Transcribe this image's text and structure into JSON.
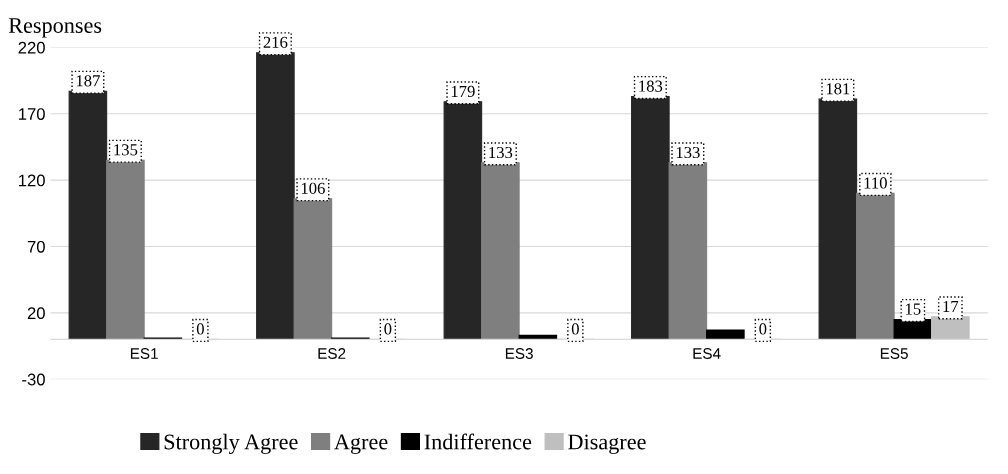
{
  "chart_data": {
    "type": "bar",
    "ylabel": "Responses",
    "categories": [
      "ES1",
      "ES2",
      "ES3",
      "ES4",
      "ES5"
    ],
    "series": [
      {
        "name": "Strongly Agree",
        "color": "#262626",
        "values": [
          187,
          216,
          179,
          183,
          181
        ],
        "value_labels": [
          "187",
          "216",
          "179",
          "183",
          "181"
        ]
      },
      {
        "name": "Agree",
        "color": "#7f7f7f",
        "values": [
          135,
          106,
          133,
          133,
          110
        ],
        "value_labels": [
          "135",
          "106",
          "133",
          "133",
          "110"
        ]
      },
      {
        "name": "Indifference",
        "color": "#000000",
        "values": [
          1,
          1,
          3,
          7,
          15
        ],
        "value_labels": [
          null,
          null,
          null,
          null,
          "15"
        ]
      },
      {
        "name": "Disagree",
        "color": "#bfbfbf",
        "values": [
          0,
          0,
          0,
          0,
          17
        ],
        "value_labels": [
          "0",
          "0",
          "0",
          "0",
          "17"
        ]
      }
    ],
    "ylim": [
      -30,
      220
    ],
    "yticks": [
      -30,
      20,
      70,
      120,
      170,
      220
    ],
    "grid": "y",
    "legend": "bottom"
  }
}
